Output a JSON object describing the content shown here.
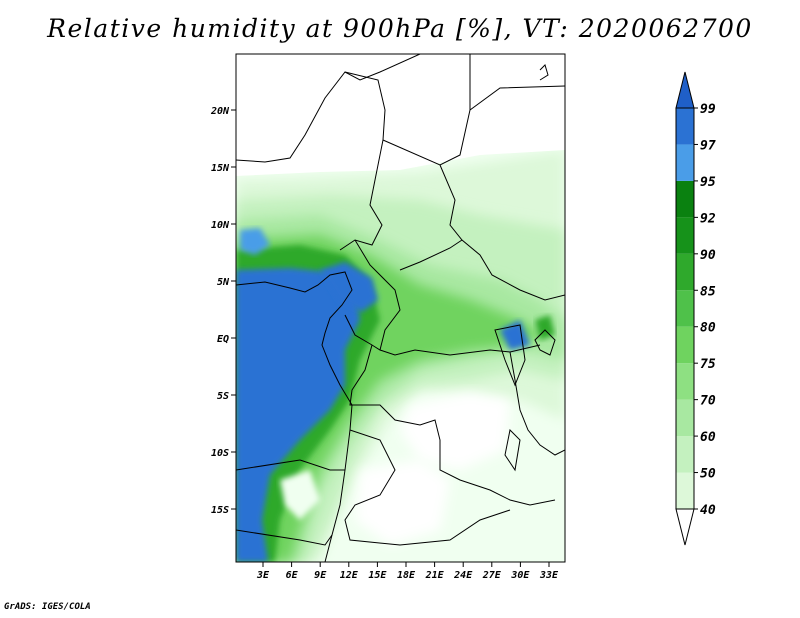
{
  "title": "Relative humidity at 900hPa [%], VT: 2020062700",
  "credit": "GrADS: IGES/COLA",
  "map": {
    "lat_labels": [
      "20N",
      "15N",
      "10N",
      "5N",
      "EQ",
      "5S",
      "10S",
      "15S"
    ],
    "lon_labels": [
      "3E",
      "6E",
      "9E",
      "12E",
      "15E",
      "18E",
      "21E",
      "24E",
      "27E",
      "30E",
      "33E"
    ]
  },
  "colorbar": {
    "levels": [
      "40",
      "50",
      "60",
      "70",
      "75",
      "80",
      "85",
      "90",
      "92",
      "95",
      "97",
      "99"
    ],
    "colors": [
      "#f0fff0",
      "#ddf8d9",
      "#c4f1bf",
      "#a8e8a1",
      "#8ee082",
      "#6fd35f",
      "#4fc14a",
      "#2fa92c",
      "#16921a",
      "#0a8110",
      "#4a9de8",
      "#2b72d3",
      "#1f5fc8"
    ],
    "below_color": "#ffffff"
  }
}
